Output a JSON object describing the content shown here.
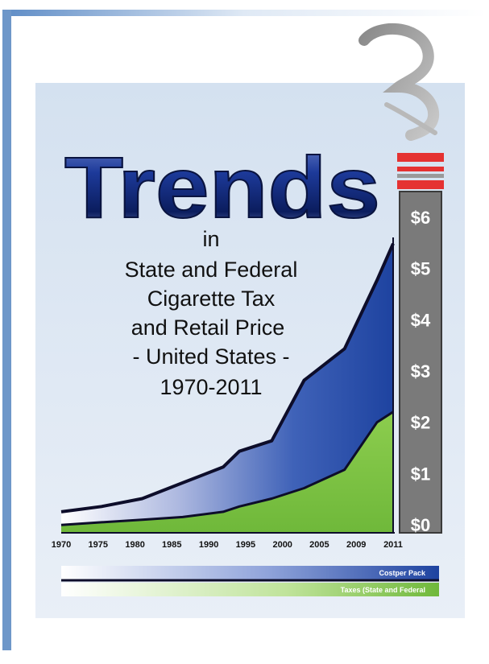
{
  "chart_data": {
    "type": "area",
    "title": "Trends",
    "subtitle_lines": [
      "in",
      "State and Federal",
      "Cigarette Tax",
      "and Retail Price",
      " - United States -",
      "1970-2011"
    ],
    "x_tick_labels": [
      "1970",
      "1975",
      "1980",
      "1985",
      "1990",
      "1995",
      "2000",
      "2005",
      "2009",
      "2011"
    ],
    "x": [
      1970,
      1975,
      1980,
      1985,
      1990,
      1995,
      2000,
      2005,
      2009,
      2011
    ],
    "y_tick_labels": [
      "$0",
      "$1",
      "$2",
      "$3",
      "$4",
      "$5",
      "$6"
    ],
    "y_ticks": [
      0,
      1,
      2,
      3,
      4,
      5,
      6
    ],
    "ylim": [
      0,
      6
    ],
    "xlim": [
      1970,
      2011
    ],
    "series": [
      {
        "name": "Costper Pack",
        "values": [
          0.4,
          0.5,
          0.65,
          0.95,
          1.25,
          1.55,
          1.75,
          2.9,
          3.5,
          4.8,
          5.5
        ],
        "x": [
          1970,
          1975,
          1980,
          1985,
          1990,
          1992,
          1996,
          2000,
          2005,
          2009,
          2011
        ],
        "color": "#1f45a0"
      },
      {
        "name": "Taxes (State and Federal",
        "values": [
          0.15,
          0.2,
          0.25,
          0.3,
          0.4,
          0.5,
          0.65,
          0.85,
          1.2,
          2.1,
          2.3
        ],
        "x": [
          1970,
          1975,
          1980,
          1985,
          1990,
          1992,
          1996,
          2000,
          2005,
          2009,
          2011
        ],
        "color": "#7dc242"
      }
    ],
    "legend": [
      {
        "label": "Costper Pack",
        "color": "#1f45a0"
      },
      {
        "label": "Taxes (State and Federal",
        "color": "#7dc242"
      }
    ],
    "legend_placement": "bottom",
    "grid": false
  },
  "colors": {
    "frame": "#6e97c9",
    "panel": "#dde7f3",
    "navy": "#1a2f7a",
    "blue": "#2a55b0",
    "green": "#7dc242",
    "scale_bar": "#777777",
    "cigarette_band": "#e53232"
  },
  "decorations": {
    "icon": "cigarette-smoke-icon"
  }
}
